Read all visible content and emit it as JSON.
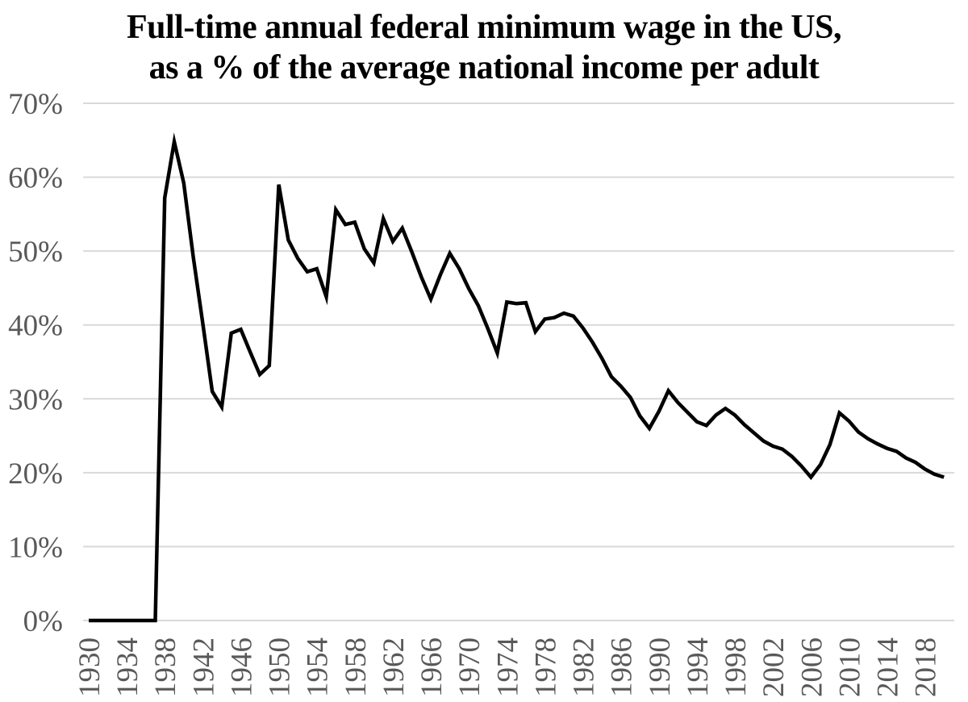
{
  "page": {
    "background": "#ffffff"
  },
  "title": {
    "line1": "Full-time annual federal minimum wage in the US,",
    "line2": "as a % of the average national income per adult"
  },
  "chart_data": {
    "type": "line",
    "title": "Full-time annual federal minimum wage in the US, as a % of the average national income per adult",
    "series_name": "Federal minimum wage as % of average national income per adult",
    "x": [
      1930,
      1931,
      1932,
      1933,
      1934,
      1935,
      1936,
      1937,
      1938,
      1939,
      1940,
      1941,
      1942,
      1943,
      1944,
      1945,
      1946,
      1947,
      1948,
      1949,
      1950,
      1951,
      1952,
      1953,
      1954,
      1955,
      1956,
      1957,
      1958,
      1959,
      1960,
      1961,
      1962,
      1963,
      1964,
      1965,
      1966,
      1967,
      1968,
      1969,
      1970,
      1971,
      1972,
      1973,
      1974,
      1975,
      1976,
      1977,
      1978,
      1979,
      1980,
      1981,
      1982,
      1983,
      1984,
      1985,
      1986,
      1987,
      1988,
      1989,
      1990,
      1991,
      1992,
      1993,
      1994,
      1995,
      1996,
      1997,
      1998,
      1999,
      2000,
      2001,
      2002,
      2003,
      2004,
      2005,
      2006,
      2007,
      2008,
      2009,
      2010,
      2011,
      2012,
      2013,
      2014,
      2015,
      2016,
      2017,
      2018,
      2019,
      2020
    ],
    "values": [
      0,
      0,
      0,
      0,
      0,
      0,
      0,
      0,
      57.2,
      64.8,
      59.2,
      49.2,
      40.2,
      31,
      28.9,
      38.9,
      39.4,
      36.3,
      33.3,
      34.5,
      59,
      51.5,
      49,
      47.2,
      47.6,
      43.8,
      55.6,
      53.6,
      53.9,
      50.3,
      48.4,
      54.4,
      51.3,
      53.1,
      49.9,
      46.5,
      43.5,
      46.8,
      49.7,
      47.6,
      44.9,
      42.6,
      39.5,
      36.2,
      43.1,
      42.9,
      43,
      39.1,
      40.8,
      41,
      41.6,
      41.2,
      39.6,
      37.7,
      35.5,
      33,
      31.7,
      30.2,
      27.7,
      26,
      28.3,
      31.1,
      29.5,
      28.2,
      26.9,
      26.4,
      27.8,
      28.7,
      27.8,
      26.5,
      25.4,
      24.3,
      23.6,
      23.2,
      22.2,
      20.9,
      19.4,
      21.1,
      23.8,
      28.1,
      27,
      25.5,
      24.6,
      23.9,
      23.3,
      22.9,
      22,
      21.4,
      20.5,
      19.8,
      19.4
    ],
    "ylim": [
      0,
      70
    ],
    "xlim": [
      1930,
      2020
    ],
    "y_tick_values": [
      0,
      10,
      20,
      30,
      40,
      50,
      60,
      70
    ],
    "y_tick_labels": [
      "0%",
      "10%",
      "20%",
      "30%",
      "40%",
      "50%",
      "60%",
      "70%"
    ],
    "x_tick_values": [
      1930,
      1934,
      1938,
      1942,
      1946,
      1950,
      1954,
      1958,
      1962,
      1966,
      1970,
      1974,
      1978,
      1982,
      1986,
      1990,
      1994,
      1998,
      2002,
      2006,
      2010,
      2014,
      2018
    ],
    "x_tick_labels": [
      "1930",
      "1934",
      "1938",
      "1942",
      "1946",
      "1950",
      "1954",
      "1958",
      "1962",
      "1966",
      "1970",
      "1974",
      "1978",
      "1982",
      "1986",
      "1990",
      "1994",
      "1998",
      "2002",
      "2006",
      "2010",
      "2014",
      "2018"
    ],
    "grid": "horizontal-only",
    "legend": "none",
    "xlabel": "",
    "ylabel": "",
    "line_color": "#000000",
    "line_width": 4.5,
    "gridline_color": "#d9d9d9",
    "tick_label_color": "#595959",
    "title_color": "#000000"
  }
}
